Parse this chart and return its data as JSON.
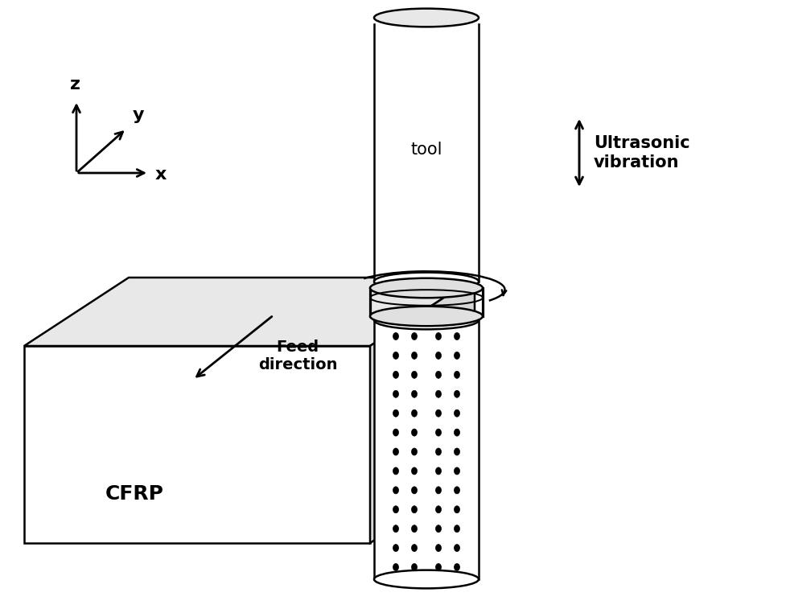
{
  "background_color": "#ffffff",
  "axis_labels": {
    "z": "z",
    "y": "y",
    "x": "x"
  },
  "annotations": {
    "tool": "tool",
    "cfrp": "CFRP",
    "feed": "Feed\ndirection",
    "ultrasonic": "Ultrasonic\nvibration"
  },
  "colors": {
    "black": "#000000",
    "white": "#ffffff",
    "face_front": "#ffffff",
    "face_top": "#e8e8e8",
    "face_right": "#d8d8d8"
  },
  "lw": 1.8
}
